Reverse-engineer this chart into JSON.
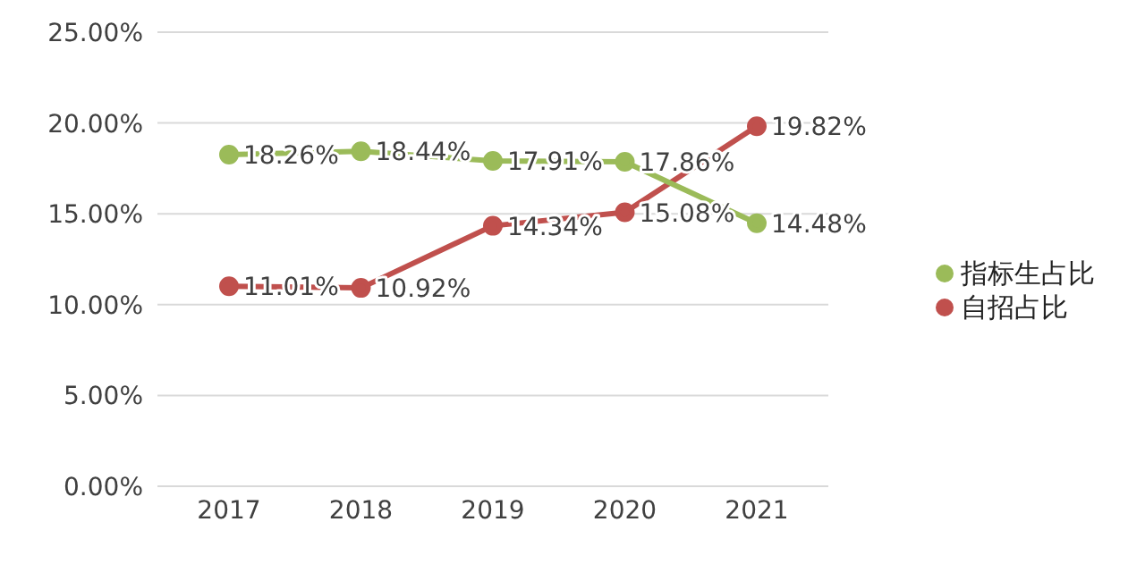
{
  "chart_data": {
    "type": "line",
    "categories": [
      "2017",
      "2018",
      "2019",
      "2020",
      "2021"
    ],
    "series": [
      {
        "name": "自招占比",
        "color": "#c0504d",
        "values": [
          11.01,
          10.92,
          14.34,
          15.08,
          19.82
        ],
        "value_labels": [
          "11.01%",
          "10.92%",
          "14.34%",
          "15.08%",
          "19.82%"
        ]
      },
      {
        "name": "指标生占比",
        "color": "#9bbb59",
        "values": [
          18.26,
          18.44,
          17.91,
          17.86,
          14.48
        ],
        "value_labels": [
          "18.26%",
          "18.44%",
          "17.91%",
          "17.86%",
          "14.48%"
        ]
      }
    ],
    "ylim": [
      0,
      25
    ],
    "yticks": [
      {
        "value": 0,
        "label": "0.00%"
      },
      {
        "value": 5,
        "label": "5.00%"
      },
      {
        "value": 10,
        "label": "10.00%"
      },
      {
        "value": 15,
        "label": "15.00%"
      },
      {
        "value": 20,
        "label": "20.00%"
      },
      {
        "value": 25,
        "label": "25.00%"
      }
    ],
    "grid": "y",
    "legend": "right",
    "marker": "circle",
    "line_style": "solid"
  }
}
